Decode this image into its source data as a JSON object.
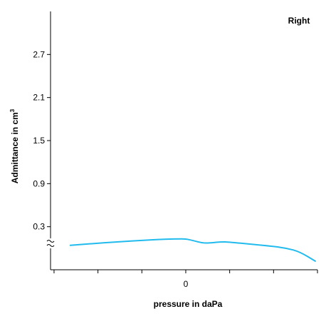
{
  "chart_data": {
    "type": "line",
    "title": "Right",
    "xlabel": "pressure in daPa",
    "ylabel": "Admittance in cm",
    "ylabel_superscript": "3",
    "x_ticks": [
      -300,
      -200,
      -100,
      0,
      100,
      200,
      300
    ],
    "x_tick_labels": [
      {
        "value": 0,
        "label": "0"
      }
    ],
    "xlim": [
      -308,
      300
    ],
    "y_ticks": [
      0.3,
      0.9,
      1.5,
      2.1,
      2.7
    ],
    "y_tick_labels": [
      "0.3",
      "0.9",
      "1.5",
      "2.1",
      "2.7"
    ],
    "ylim": [
      -0.3,
      3.3
    ],
    "y_axis_break": true,
    "grid": false,
    "color": "#22bbee",
    "series": [
      {
        "x": [
          -263,
          -200,
          -150,
          -100,
          -50,
          -20,
          0,
          15,
          40,
          60,
          80,
          100,
          150,
          200,
          230,
          260,
          295
        ],
        "y": [
          0.04,
          0.07,
          0.09,
          0.11,
          0.125,
          0.13,
          0.13,
          0.11,
          0.07,
          0.075,
          0.09,
          0.085,
          0.055,
          0.025,
          0.0,
          -0.05,
          -0.18
        ]
      }
    ]
  }
}
